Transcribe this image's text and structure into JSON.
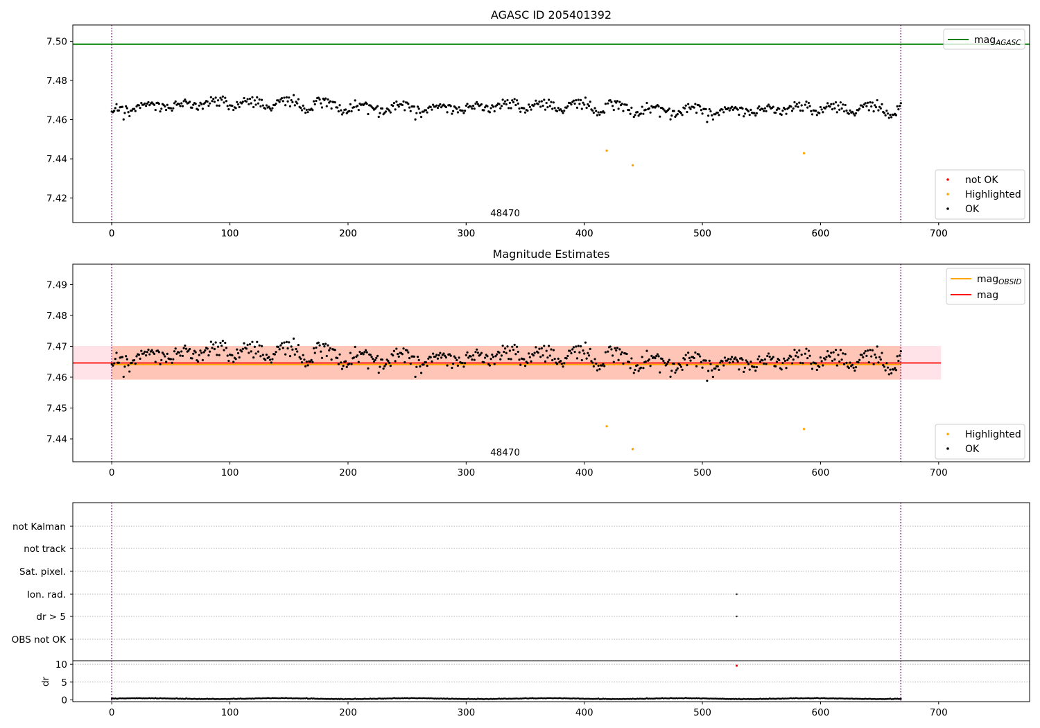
{
  "figure": {
    "colors": {
      "ok": "#000000",
      "highlighted": "#ffa500",
      "not_ok": "#ff0000",
      "agasc_line": "#008000",
      "mag_line": "#ff0000",
      "obsid_line": "#ffa500",
      "band_outer": "#ffc0cb",
      "band_inner": "#ffa07a",
      "obs_boundary": "#800080"
    }
  },
  "chart_data": [
    {
      "id": "agasc",
      "type": "scatter",
      "title": "AGASC ID 205401392",
      "annotation": "48470",
      "xlim": [
        -33,
        777
      ],
      "ylim": [
        7.4075,
        7.5083
      ],
      "xticks": [
        "0",
        "100",
        "200",
        "300",
        "400",
        "500",
        "600",
        "700"
      ],
      "yticks": [
        "7.42",
        "7.44",
        "7.46",
        "7.48",
        "7.50"
      ],
      "obs_boundaries": [
        0,
        668
      ],
      "lines": [
        {
          "name": "mag_AGASC",
          "y": 7.4985
        }
      ],
      "legend_lines": [
        {
          "label": "mag",
          "sub": "AGASC"
        }
      ],
      "legend_points": [
        {
          "label": "not OK"
        },
        {
          "label": "Highlighted"
        },
        {
          "label": "OK"
        }
      ],
      "highlighted_points": [
        [
          419,
          7.4442
        ],
        [
          441,
          7.4367
        ],
        [
          586,
          7.4429
        ]
      ],
      "ok_series": {
        "n_points": 669,
        "mean": 7.4645,
        "range": [
          7.4495,
          7.4773
        ]
      }
    },
    {
      "id": "estimates",
      "type": "scatter",
      "title": "Magnitude Estimates",
      "annotation": "48470",
      "xlim": [
        -33,
        777
      ],
      "ylim": [
        7.4326,
        7.4966
      ],
      "xticks": [
        "0",
        "100",
        "200",
        "300",
        "400",
        "500",
        "600",
        "700"
      ],
      "yticks": [
        "7.44",
        "7.45",
        "7.46",
        "7.47",
        "7.48",
        "7.49"
      ],
      "obs_boundaries": [
        0,
        668
      ],
      "mag": 7.4646,
      "mag_obsid": 7.4641,
      "band": {
        "low": 7.4592,
        "high": 7.4701
      },
      "line_x_extent": [
        -33,
        702
      ],
      "legend_lines": [
        {
          "label": "mag",
          "sub": "OBSID"
        },
        {
          "label": "mag",
          "sub": ""
        }
      ],
      "legend_points": [
        {
          "label": "Highlighted"
        },
        {
          "label": "OK"
        }
      ],
      "highlighted_points": [
        [
          419,
          7.4441
        ],
        [
          441,
          7.4367
        ],
        [
          586,
          7.4432
        ]
      ],
      "ok_series": {
        "n_points": 669,
        "mean": 7.4645,
        "range": [
          7.4495,
          7.4773
        ]
      }
    },
    {
      "id": "flags",
      "type": "scatter",
      "xlim": [
        -33,
        777
      ],
      "categories": [
        "not Kalman",
        "not track",
        "Sat. pixel.",
        "Ion. rad.",
        "dr > 5",
        "OBS not OK"
      ],
      "flag_points": [
        {
          "category": "Ion. rad.",
          "x": 529
        },
        {
          "category": "dr > 5",
          "x": 529
        }
      ],
      "obs_boundaries": [
        0,
        668
      ]
    },
    {
      "id": "dr",
      "type": "scatter",
      "ylabel": "dr",
      "xlim": [
        -33,
        777
      ],
      "ylim": [
        -0.5,
        11
      ],
      "xticks": [
        "0",
        "100",
        "200",
        "300",
        "400",
        "500",
        "600",
        "700"
      ],
      "yticks": [
        "0",
        "5",
        "10"
      ],
      "outlier": {
        "x": 529,
        "y": 10
      },
      "obs_boundaries": [
        0,
        668
      ],
      "dr_series": {
        "n_points": 669,
        "typical": 0.3
      }
    }
  ]
}
